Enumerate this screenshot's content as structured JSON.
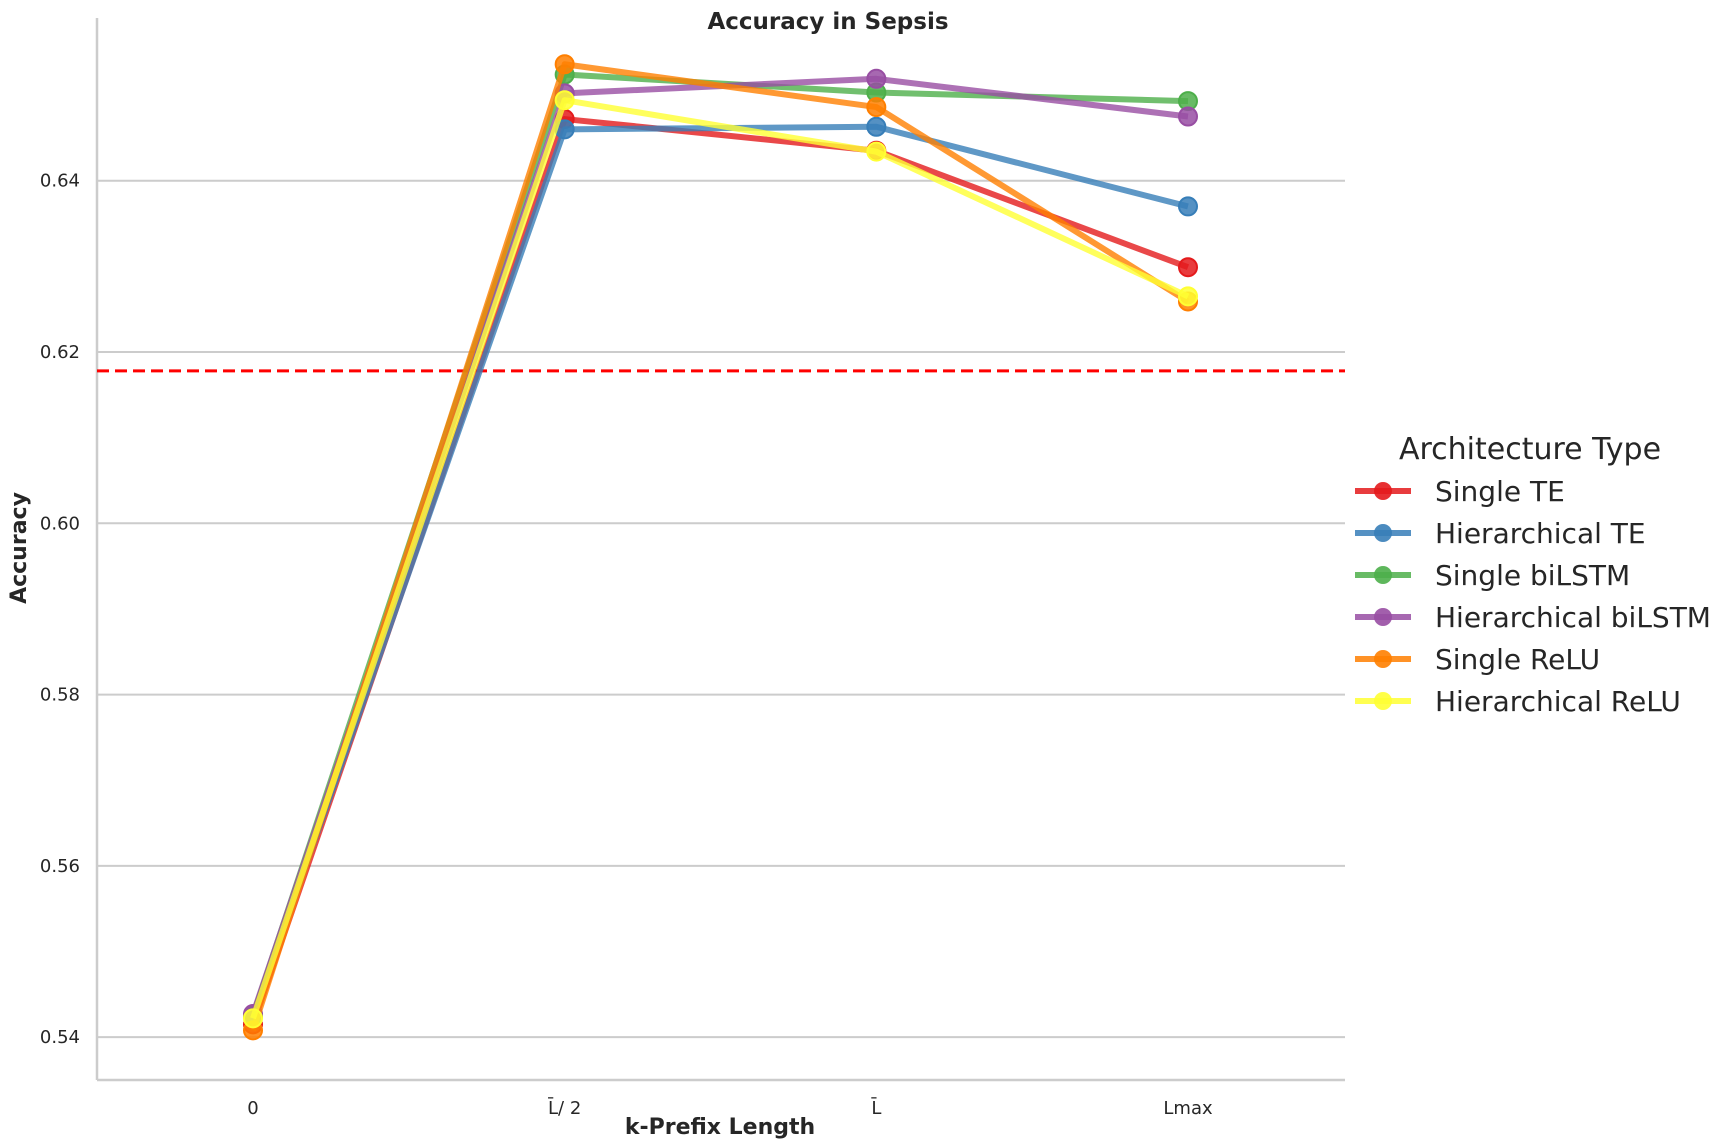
{
  "chart_data": {
    "type": "line",
    "title": "Accuracy in Sepsis",
    "xlabel": "k-Prefix Length",
    "ylabel": "Accuracy",
    "categories": [
      "0",
      "L̄/ 2",
      "L̄",
      "Lmax"
    ],
    "ylim": [
      0.535,
      0.659
    ],
    "yticks": [
      0.54,
      0.56,
      0.58,
      0.6,
      0.62,
      0.64
    ],
    "ytick_labels": [
      "0.54",
      "0.56",
      "0.58",
      "0.60",
      "0.62",
      "0.64"
    ],
    "grid": "horizontal",
    "legend": {
      "title": "Architecture Type",
      "placement": "right"
    },
    "reference_line": {
      "value": 0.6178,
      "color": "#ff0000",
      "style": "dashed"
    },
    "series": [
      {
        "name": "Single TE",
        "color": "#e41a1c",
        "values": [
          0.5415,
          0.6472,
          0.6435,
          0.6299
        ]
      },
      {
        "name": "Hierarchical TE",
        "color": "#377eb8",
        "values": [
          0.5425,
          0.646,
          0.6463,
          0.637
        ]
      },
      {
        "name": "Single biLSTM",
        "color": "#4daf4a",
        "values": [
          0.5425,
          0.6524,
          0.6503,
          0.6493
        ]
      },
      {
        "name": "Hierarchical biLSTM",
        "color": "#984ea3",
        "values": [
          0.5427,
          0.6502,
          0.6519,
          0.6475
        ]
      },
      {
        "name": "Single ReLU",
        "color": "#ff7f00",
        "values": [
          0.5408,
          0.6536,
          0.6486,
          0.6259
        ]
      },
      {
        "name": "Hierarchical ReLU",
        "color": "#ffff33",
        "values": [
          0.5422,
          0.6494,
          0.6434,
          0.6265
        ]
      }
    ]
  }
}
